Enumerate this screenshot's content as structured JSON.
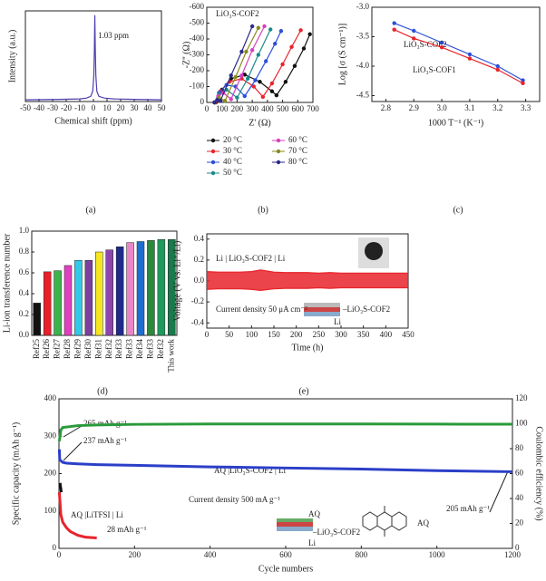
{
  "chart_data": [
    {
      "type": "line",
      "panel_label": "(a)",
      "xlabel": "Chemical shift (ppm)",
      "ylabel": "Intensity (a.u.)",
      "annotations": [
        "1.03 ppm"
      ],
      "xlim": [
        -50,
        50
      ],
      "xticks": [
        -50,
        -40,
        -30,
        -20,
        -10,
        0,
        10,
        20,
        30,
        40,
        50
      ],
      "ylim": [
        0,
        1.05
      ],
      "series": [
        {
          "color": "#4b3fb0",
          "x": [
            -50,
            -25,
            -10,
            -5,
            -2,
            -0.5,
            0.3,
            0.7,
            1.03,
            1.4,
            1.8,
            2.5,
            4,
            8,
            15,
            30,
            50
          ],
          "values": [
            0.02,
            0.025,
            0.03,
            0.04,
            0.06,
            0.12,
            0.3,
            0.6,
            1.0,
            0.6,
            0.3,
            0.12,
            0.06,
            0.04,
            0.03,
            0.025,
            0.02
          ]
        }
      ]
    },
    {
      "type": "line",
      "panel_label": "(b)",
      "title": "LiO₃S-COF2",
      "xlabel": "Z' (Ω)",
      "ylabel": "-Z'' (Ω)",
      "markers": true,
      "legend": true,
      "xlim": [
        0,
        700
      ],
      "xticks": [
        0,
        100,
        200,
        300,
        400,
        500,
        600,
        700
      ],
      "ylim": [
        0,
        -600
      ],
      "yticks": [
        0,
        -100,
        -200,
        -300,
        -400,
        -500,
        -600
      ],
      "series": [
        {
          "name": "20 °C",
          "color": "#111111",
          "x": [
            60,
            100,
            160,
            250,
            350,
            430,
            460,
            520,
            580,
            640,
            680
          ],
          "values": [
            0,
            -80,
            -150,
            -175,
            -130,
            -70,
            -45,
            -130,
            -230,
            -340,
            -430
          ]
        },
        {
          "name": "30 °C",
          "color": "#e8232a",
          "x": [
            55,
            90,
            150,
            230,
            310,
            370,
            430,
            500,
            560,
            620
          ],
          "values": [
            0,
            -70,
            -130,
            -150,
            -100,
            -35,
            -120,
            -240,
            -350,
            -455
          ]
        },
        {
          "name": "40 °C",
          "color": "#2b4fd8",
          "x": [
            50,
            80,
            130,
            190,
            250,
            320,
            390,
            450,
            490
          ],
          "values": [
            0,
            -60,
            -110,
            -100,
            -40,
            -140,
            -260,
            -370,
            -450
          ]
        },
        {
          "name": "50 °C",
          "color": "#1a8a8a",
          "x": [
            50,
            80,
            130,
            200,
            270,
            340,
            420
          ],
          "values": [
            0,
            -50,
            -80,
            -30,
            -150,
            -300,
            -460
          ]
        },
        {
          "name": "60 °C",
          "color": "#d63fc0",
          "x": [
            50,
            75,
            110,
            160,
            230,
            300,
            380
          ],
          "values": [
            0,
            -40,
            -60,
            -20,
            -170,
            -330,
            -480
          ]
        },
        {
          "name": "70 °C",
          "color": "#8a8a1a",
          "x": [
            50,
            80,
            120,
            190,
            260,
            340
          ],
          "values": [
            0,
            -30,
            -10,
            -160,
            -320,
            -470
          ]
        },
        {
          "name": "80 °C",
          "color": "#2a2a8a",
          "x": [
            50,
            70,
            90,
            160,
            230,
            300
          ],
          "values": [
            0,
            -15,
            -10,
            -170,
            -320,
            -480
          ]
        }
      ]
    },
    {
      "type": "line",
      "panel_label": "(c)",
      "xlabel": "1000 T⁻¹ (K⁻¹)",
      "ylabel": "Log [σ (S cm⁻¹)]",
      "markers": true,
      "xlim": [
        2.75,
        3.35
      ],
      "xticks": [
        2.8,
        2.9,
        {
          "value": 3,
          "label": "3.0"
        },
        3.1,
        3.2,
        3.3
      ],
      "ylim": [
        -4.6,
        -3.0
      ],
      "yticks": [
        {
          "value": -3,
          "label": "-3.0"
        },
        -3.5,
        {
          "value": -4,
          "label": "-4.0"
        },
        -4.5
      ],
      "series": [
        {
          "name": "LiO₃S-COF2",
          "color": "#2b4fd8",
          "x": [
            2.83,
            2.9,
            3.0,
            3.1,
            3.2,
            3.29
          ],
          "values": [
            -3.27,
            -3.4,
            -3.6,
            -3.8,
            -4.0,
            -4.24
          ]
        },
        {
          "name": "LiO₃S-COF1",
          "color": "#e8232a",
          "x": [
            2.83,
            2.9,
            3.0,
            3.1,
            3.2,
            3.29
          ],
          "values": [
            -3.38,
            -3.53,
            -3.68,
            -3.87,
            -4.06,
            -4.29
          ]
        }
      ]
    },
    {
      "type": "bar",
      "panel_label": "(d)",
      "ylabel": "Li-ion transference number",
      "categories": [
        "Ref25",
        "Ref26",
        "Ref27",
        "Ref28",
        "Ref29",
        "Ref30",
        "Ref31",
        "Ref32",
        "Ref33",
        "Ref33",
        "Ref34",
        "Ref33",
        "Ref32",
        "This work"
      ],
      "values": [
        0.31,
        0.61,
        0.62,
        0.67,
        0.72,
        0.72,
        0.8,
        0.82,
        0.85,
        0.89,
        0.9,
        0.91,
        0.92,
        0.92
      ],
      "colors": [
        "#111111",
        "#e8202a",
        "#3cb44b",
        "#e040c0",
        "#33c8e8",
        "#7b3f9e",
        "#f5e620",
        "#8e44ad",
        "#1f2a8a",
        "#e986c8",
        "#1e6ed2",
        "#2a8a3a",
        "#1f9a5a",
        "#1a7a4a"
      ],
      "ylim": [
        0,
        1.0
      ],
      "yticks": [
        {
          "value": 0,
          "label": "0.0"
        },
        0.2,
        0.4,
        0.6,
        0.8,
        {
          "value": 1,
          "label": "1.0"
        }
      ]
    },
    {
      "type": "line",
      "panel_label": "(e)",
      "xlabel": "Time (h)",
      "ylabel": "Voltage (V vs. Li⁺/Li)",
      "fill_between": true,
      "annotations": [
        "Li | LiO₃S-COF2 | Li",
        "Current density 50 μA cm⁻²",
        "–LiO₃S-COF2",
        "Li"
      ],
      "xlim": [
        0,
        450
      ],
      "xticks": [
        0,
        50,
        100,
        150,
        200,
        250,
        300,
        350,
        400,
        450
      ],
      "ylim": [
        -0.45,
        0.45
      ],
      "yticks": [
        -0.4,
        -0.2,
        {
          "value": 0,
          "label": "0.0"
        },
        0.2,
        0.4
      ],
      "series": [
        {
          "color": "#e8232a",
          "x": [
            0,
            25,
            50,
            75,
            100,
            120,
            150,
            175,
            200,
            225,
            250,
            275,
            300,
            325,
            350,
            375,
            400,
            425,
            450
          ],
          "values": [
            0.09,
            0.085,
            0.085,
            0.085,
            0.09,
            0.105,
            0.085,
            0.08,
            0.08,
            0.08,
            0.075,
            0.08,
            0.075,
            0.075,
            0.075,
            0.075,
            0.075,
            0.075,
            0.075
          ]
        },
        {
          "color": "#e8232a",
          "x": [
            0,
            25,
            50,
            75,
            100,
            120,
            150,
            175,
            200,
            225,
            250,
            275,
            300,
            325,
            350,
            375,
            400,
            425,
            450
          ],
          "values": [
            -0.08,
            -0.075,
            -0.075,
            -0.075,
            -0.08,
            -0.09,
            -0.075,
            -0.07,
            -0.07,
            -0.07,
            -0.065,
            -0.07,
            -0.065,
            -0.065,
            -0.065,
            -0.065,
            -0.065,
            -0.065,
            -0.065
          ]
        }
      ]
    },
    {
      "type": "line",
      "xlabel": "Cycle numbers",
      "ylabel": "Specific capacity (mAh g⁻¹)",
      "y2label": "Coulombic efficiency (%)",
      "annotations": [
        "265 mAh g⁻¹",
        "237 mAh g⁻¹",
        "AQ |LiO₃S-COF2 | Li",
        "Current density 500 mA g⁻¹",
        "205 mAh g⁻¹",
        "AQ |LiTFSI | Li",
        "28 mAh g⁻¹",
        "AQ",
        "–LiO₃S-COF2",
        "Li",
        "AQ"
      ],
      "xlim": [
        0,
        1200
      ],
      "xticks": [
        0,
        200,
        400,
        600,
        800,
        1000,
        1200
      ],
      "ylim": [
        0,
        400
      ],
      "yticks": [
        0,
        100,
        200,
        300,
        400
      ],
      "y2lim": [
        0,
        120
      ],
      "y2ticks": [
        0,
        20,
        40,
        60,
        80,
        100,
        120
      ],
      "series": [
        {
          "color": "#2b3fc8",
          "x": [
            1,
            2,
            10,
            20,
            50,
            100,
            200,
            400,
            600,
            800,
            1000,
            1200
          ],
          "values": [
            265,
            237,
            230,
            228,
            226,
            224,
            222,
            218,
            215,
            212,
            208,
            205
          ]
        },
        {
          "color": "#e8232a",
          "x": [
            1,
            3,
            5,
            10,
            20,
            30,
            50,
            70,
            100
          ],
          "values": [
            150,
            120,
            90,
            70,
            55,
            45,
            35,
            30,
            28
          ]
        },
        {
          "color": "#111111",
          "x": [
            3,
            4,
            5,
            6
          ],
          "values": [
            175,
            165,
            160,
            150
          ]
        },
        {
          "color": "#2a9a3a",
          "axis": "y2",
          "x": [
            1,
            5,
            10,
            50,
            100,
            200,
            400,
            600,
            800,
            1000,
            1200
          ],
          "values": [
            86,
            95,
            97,
            98.5,
            99,
            99.5,
            99.8,
            99.8,
            99.8,
            99.7,
            99.6
          ]
        }
      ]
    }
  ]
}
